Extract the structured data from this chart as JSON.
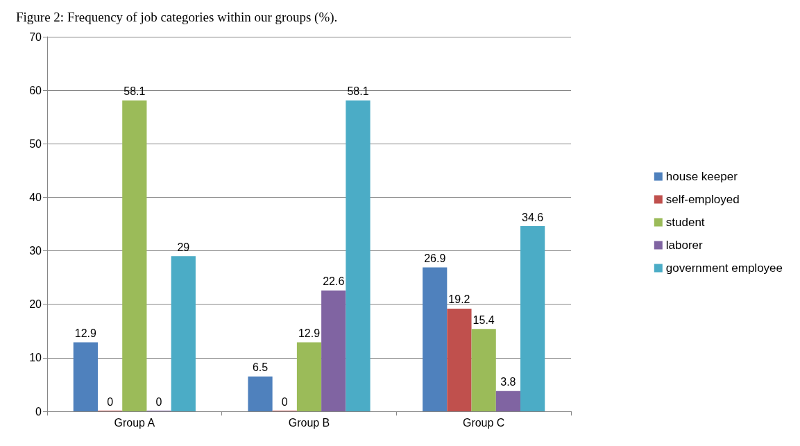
{
  "chart_data": {
    "type": "bar",
    "title": "Figure 2: Frequency of job categories within our groups (%).",
    "categories": [
      "Group A",
      "Group B",
      "Group C"
    ],
    "series": [
      {
        "name": "house keeper",
        "color": "#4f81bd",
        "values": [
          12.9,
          6.5,
          26.9
        ]
      },
      {
        "name": "self-employed",
        "color": "#c0504d",
        "values": [
          0,
          0,
          19.2
        ]
      },
      {
        "name": "student",
        "color": "#9bbb59",
        "values": [
          58.1,
          12.9,
          15.4
        ]
      },
      {
        "name": "laborer",
        "color": "#8064a2",
        "values": [
          0,
          22.6,
          3.8
        ]
      },
      {
        "name": "government employee",
        "color": "#4bacc6",
        "values": [
          29,
          58.1,
          34.6
        ]
      }
    ],
    "ylim": [
      0,
      70
    ],
    "yticks": [
      0,
      10,
      20,
      30,
      40,
      50,
      60,
      70
    ],
    "grid": "y",
    "legend": "right",
    "data_labels": true
  }
}
